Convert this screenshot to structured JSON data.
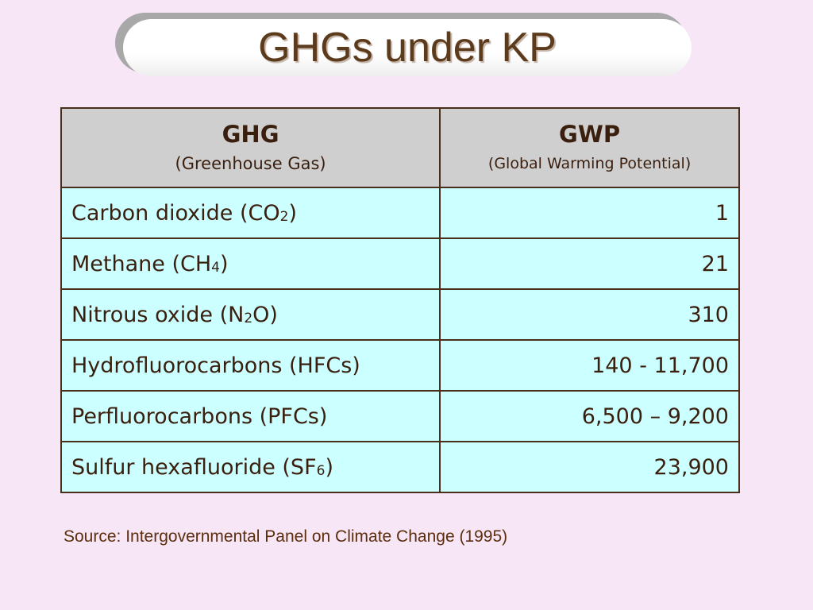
{
  "slide": {
    "title": "GHGs under KP",
    "source": "Source: Intergovernmental Panel on Climate Change (1995)"
  },
  "table": {
    "headers": [
      {
        "main": "GHG",
        "sub": "(Greenhouse Gas)"
      },
      {
        "main": "GWP",
        "sub": "(Global Warming Potential)"
      }
    ],
    "rows": [
      {
        "name_pre": "Carbon dioxide (CO",
        "name_sub": "2",
        "name_post": ")",
        "gwp": "1"
      },
      {
        "name_pre": "Methane (CH",
        "name_sub": "4",
        "name_post": ")",
        "gwp": "21"
      },
      {
        "name_pre": "Nitrous oxide (N",
        "name_sub": "2",
        "name_post": "O)",
        "gwp": "310"
      },
      {
        "name_pre": "Hydrofluorocarbons (HFCs)",
        "name_sub": "",
        "name_post": "",
        "gwp": "140 - 11,700"
      },
      {
        "name_pre": "Perfluorocarbons (PFCs)",
        "name_sub": "",
        "name_post": "",
        "gwp": "6,500 – 9,200"
      },
      {
        "name_pre": "Sulfur hexafluoride (SF",
        "name_sub": "6",
        "name_post": ")",
        "gwp": "23,900"
      }
    ]
  },
  "colors": {
    "background": "#f6e6f6",
    "header_fill": "#cfcfcf",
    "cell_fill": "#ccffff",
    "title_text": "#5c3a1c",
    "border": "#4a2e1a"
  }
}
